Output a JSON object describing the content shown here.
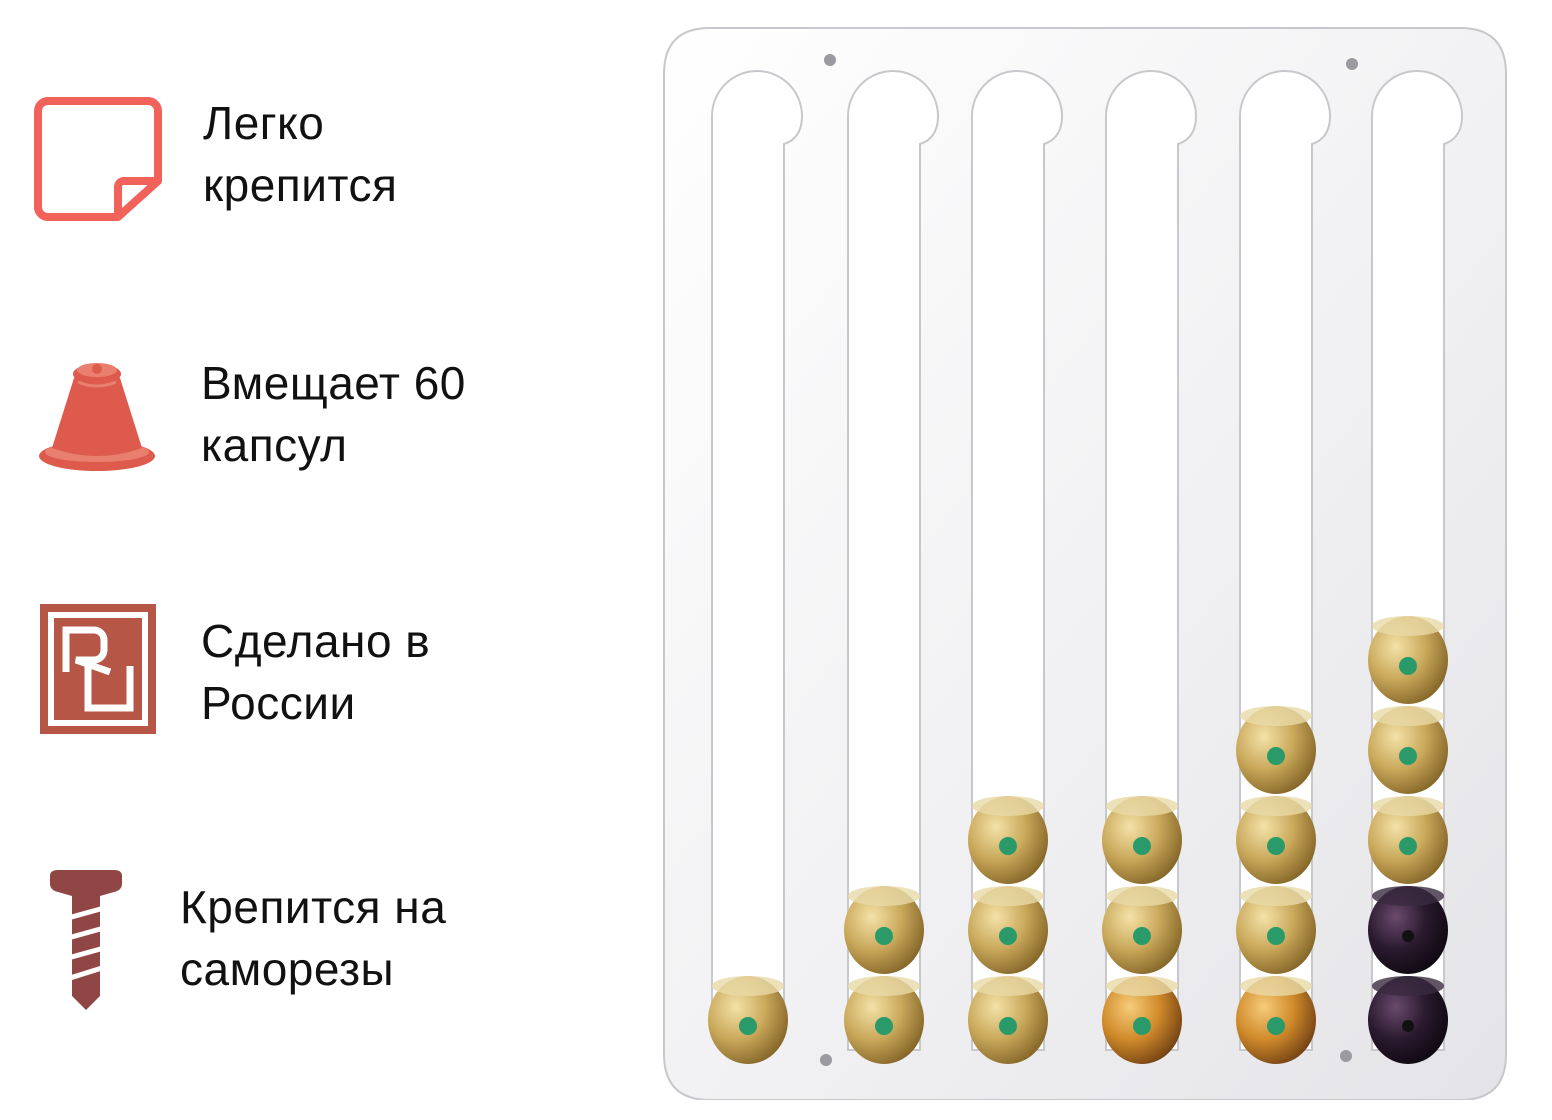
{
  "features": [
    {
      "text": "Легко\nкрепится",
      "icon": "sticky-note-icon"
    },
    {
      "text": "Вмещает 60\nкапсул",
      "icon": "coffee-capsule-icon"
    },
    {
      "text": "Сделано в\nРоссии",
      "icon": "ru-badge-icon",
      "badge_text": "RU"
    },
    {
      "text": "Крепится на\nсаморезы",
      "icon": "screw-icon"
    }
  ],
  "colors": {
    "accent_coral": "#f0625a",
    "capsule_red": "#dd5a4c",
    "badge_red": "#b55646",
    "screw_brown": "#8f4645",
    "capsule_gold": "#c9a85a",
    "capsule_dark": "#2a1a2e",
    "capsule_green_dot": "#2a9a6a"
  },
  "product": {
    "name": "capsule-holder-stand",
    "columns": [
      {
        "capsules": [
          "gold"
        ]
      },
      {
        "capsules": [
          "gold",
          "gold"
        ]
      },
      {
        "capsules": [
          "gold",
          "gold",
          "gold"
        ]
      },
      {
        "capsules": [
          "orange",
          "gold",
          "gold"
        ]
      },
      {
        "capsules": [
          "orange",
          "gold",
          "gold",
          "gold"
        ]
      },
      {
        "capsules": [
          "dark",
          "dark",
          "gold",
          "gold",
          "gold"
        ]
      }
    ]
  }
}
